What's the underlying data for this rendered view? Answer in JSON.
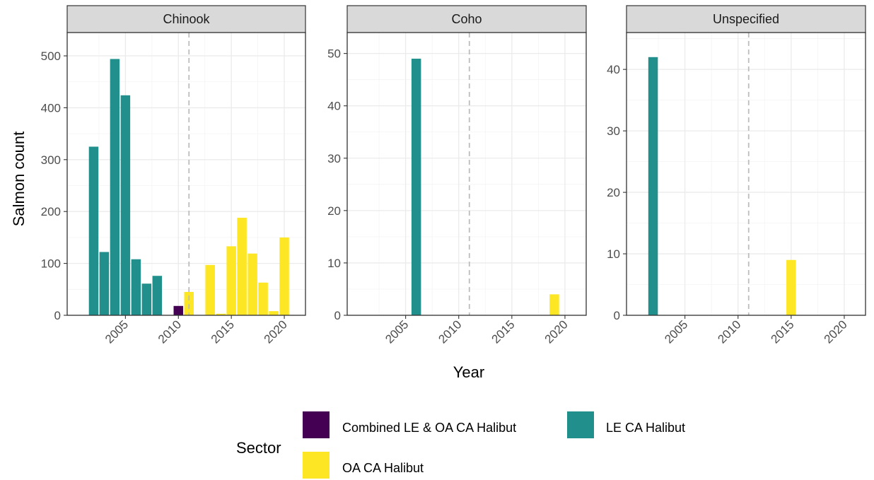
{
  "chart_data": {
    "type": "bar",
    "facet_by": "species",
    "xlabel": "Year",
    "ylabel": "Salmon count",
    "x_ticks": [
      2005,
      2010,
      2015,
      2020
    ],
    "xlim": [
      1999.5,
      2022
    ],
    "vline": 2011,
    "legend": {
      "title": "Sector",
      "position": "bottom",
      "entries": [
        {
          "name": "Combined LE & OA CA Halibut",
          "color": "#440154"
        },
        {
          "name": "LE CA Halibut",
          "color": "#21908C"
        },
        {
          "name": "OA CA Halibut",
          "color": "#FDE725"
        }
      ]
    },
    "panels": [
      {
        "strip": "Chinook",
        "ylim": [
          0,
          545
        ],
        "y_ticks": [
          0,
          100,
          200,
          300,
          400,
          500
        ],
        "series": [
          {
            "name": "LE CA Halibut",
            "x": [
              2002,
              2003,
              2004,
              2005,
              2006,
              2007,
              2008
            ],
            "values": [
              325,
              122,
              494,
              424,
              108,
              61,
              76
            ]
          },
          {
            "name": "Combined LE & OA CA Halibut",
            "x": [
              2010
            ],
            "values": [
              18
            ]
          },
          {
            "name": "OA CA Halibut",
            "x": [
              2011,
              2013,
              2014,
              2015,
              2016,
              2017,
              2018,
              2019,
              2020
            ],
            "values": [
              45,
              97,
              3,
              133,
              188,
              119,
              63,
              8,
              150
            ]
          }
        ]
      },
      {
        "strip": "Coho",
        "ylim": [
          0,
          54
        ],
        "y_ticks": [
          0,
          10,
          20,
          30,
          40,
          50
        ],
        "series": [
          {
            "name": "LE CA Halibut",
            "x": [
              2006
            ],
            "values": [
              49
            ]
          },
          {
            "name": "OA CA Halibut",
            "x": [
              2019
            ],
            "values": [
              4
            ]
          }
        ]
      },
      {
        "strip": "Unspecified",
        "ylim": [
          0,
          46
        ],
        "y_ticks": [
          0,
          10,
          20,
          30,
          40
        ],
        "series": [
          {
            "name": "LE CA Halibut",
            "x": [
              2002
            ],
            "values": [
              42
            ]
          },
          {
            "name": "OA CA Halibut",
            "x": [
              2015
            ],
            "values": [
              9
            ]
          }
        ]
      }
    ]
  }
}
